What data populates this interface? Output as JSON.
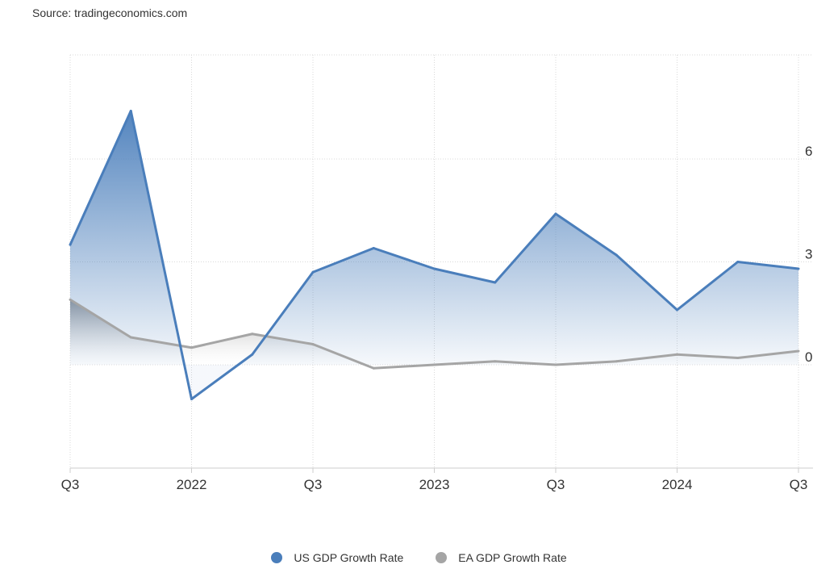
{
  "source": "Source: tradingeconomics.com",
  "colors": {
    "us": "#4a7ebb",
    "ea": "#a5a5a5"
  },
  "chart_data": {
    "type": "area",
    "x": [
      "2021 Q3",
      "2021 Q4",
      "2022 Q1",
      "2022 Q2",
      "2022 Q3",
      "2022 Q4",
      "2023 Q1",
      "2023 Q2",
      "2023 Q3",
      "2023 Q4",
      "2024 Q1",
      "2024 Q2",
      "2024 Q3"
    ],
    "x_tick_labels": [
      "Q3",
      "2022",
      "Q3",
      "2023",
      "Q3",
      "2024",
      "Q3"
    ],
    "y_ticks": [
      0,
      3,
      6
    ],
    "ylim": [
      -3,
      9
    ],
    "grid": true,
    "legend_position": "bottom",
    "series": [
      {
        "name": "US GDP Growth Rate",
        "values": [
          3.5,
          7.4,
          -1.0,
          0.3,
          2.7,
          3.4,
          2.8,
          2.4,
          4.4,
          3.2,
          1.6,
          3.0,
          2.8
        ]
      },
      {
        "name": "EA GDP Growth Rate",
        "values": [
          1.9,
          0.8,
          0.5,
          0.9,
          0.6,
          -0.1,
          0.0,
          0.1,
          0.0,
          0.1,
          0.3,
          0.2,
          0.4
        ]
      }
    ]
  }
}
